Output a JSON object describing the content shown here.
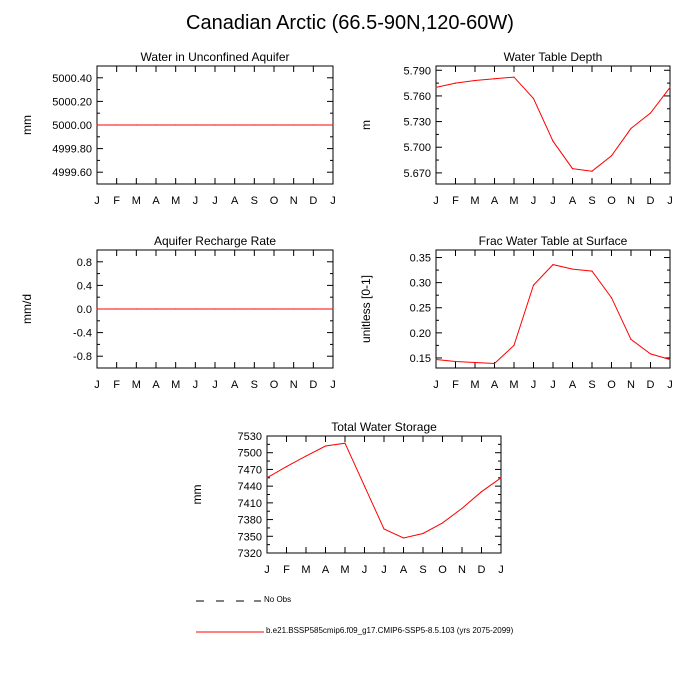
{
  "page_title": "Canadian Arctic (66.5-90N,120-60W)",
  "months": [
    "J",
    "F",
    "M",
    "A",
    "M",
    "J",
    "J",
    "A",
    "S",
    "O",
    "N",
    "D",
    "J"
  ],
  "line_color": "#ff0000",
  "obs_color": "#000000",
  "legend": {
    "obs_label": "No Obs",
    "model_label": "b.e21.BSSP585cmip6.f09_g17.CMIP6-SSP5-8.5.103 (yrs 2075-2099)"
  },
  "chart_data": [
    {
      "type": "line",
      "title": "Water in Unconfined Aquifer",
      "ylabel": "mm",
      "ylim": [
        4999.5,
        5000.5
      ],
      "yticks": [
        4999.6,
        4999.8,
        5000.0,
        5000.2,
        5000.4
      ],
      "ytick_labels": [
        "4999.60",
        "4999.80",
        "5000.00",
        "5000.20",
        "5000.40"
      ],
      "series": [
        {
          "values": [
            5000,
            5000,
            5000,
            5000,
            5000,
            5000,
            5000,
            5000,
            5000,
            5000,
            5000,
            5000,
            5000
          ]
        }
      ]
    },
    {
      "type": "line",
      "title": "Water Table Depth",
      "ylabel": "m",
      "ylim": [
        5.657,
        5.795
      ],
      "yticks": [
        5.67,
        5.7,
        5.73,
        5.76,
        5.79
      ],
      "ytick_labels": [
        "5.670",
        "5.700",
        "5.730",
        "5.760",
        "5.790"
      ],
      "series": [
        {
          "values": [
            5.77,
            5.775,
            5.778,
            5.78,
            5.782,
            5.757,
            5.707,
            5.675,
            5.672,
            5.69,
            5.722,
            5.74,
            5.77
          ]
        }
      ]
    },
    {
      "type": "line",
      "title": "Aquifer Recharge Rate",
      "ylabel": "mm/d",
      "ylim": [
        -1.0,
        1.0
      ],
      "yticks": [
        -0.8,
        -0.4,
        0.0,
        0.4,
        0.8
      ],
      "ytick_labels": [
        "-0.8",
        "-0.4",
        "0.0",
        "0.4",
        "0.8"
      ],
      "series": [
        {
          "values": [
            0,
            0,
            0,
            0,
            0,
            0,
            0,
            0,
            0,
            0,
            0,
            0,
            0
          ]
        }
      ]
    },
    {
      "type": "line",
      "title": "Frac Water Table at Surface",
      "ylabel": "unitless [0-1]",
      "ylim": [
        0.13,
        0.365
      ],
      "yticks": [
        0.15,
        0.2,
        0.25,
        0.3,
        0.35
      ],
      "ytick_labels": [
        "0.15",
        "0.20",
        "0.25",
        "0.30",
        "0.35"
      ],
      "series": [
        {
          "values": [
            0.147,
            0.143,
            0.141,
            0.139,
            0.175,
            0.295,
            0.336,
            0.327,
            0.323,
            0.27,
            0.187,
            0.158,
            0.147
          ]
        }
      ]
    },
    {
      "type": "line",
      "title": "Total Water Storage",
      "ylabel": "mm",
      "ylim": [
        7320,
        7530
      ],
      "yticks": [
        7320,
        7350,
        7380,
        7410,
        7440,
        7470,
        7500,
        7530
      ],
      "ytick_labels": [
        "7320",
        "7350",
        "7380",
        "7410",
        "7440",
        "7470",
        "7500",
        "7530"
      ],
      "series": [
        {
          "values": [
            7455,
            7475,
            7494,
            7512,
            7517,
            7440,
            7363,
            7347,
            7355,
            7374,
            7400,
            7430,
            7455
          ]
        }
      ]
    }
  ]
}
